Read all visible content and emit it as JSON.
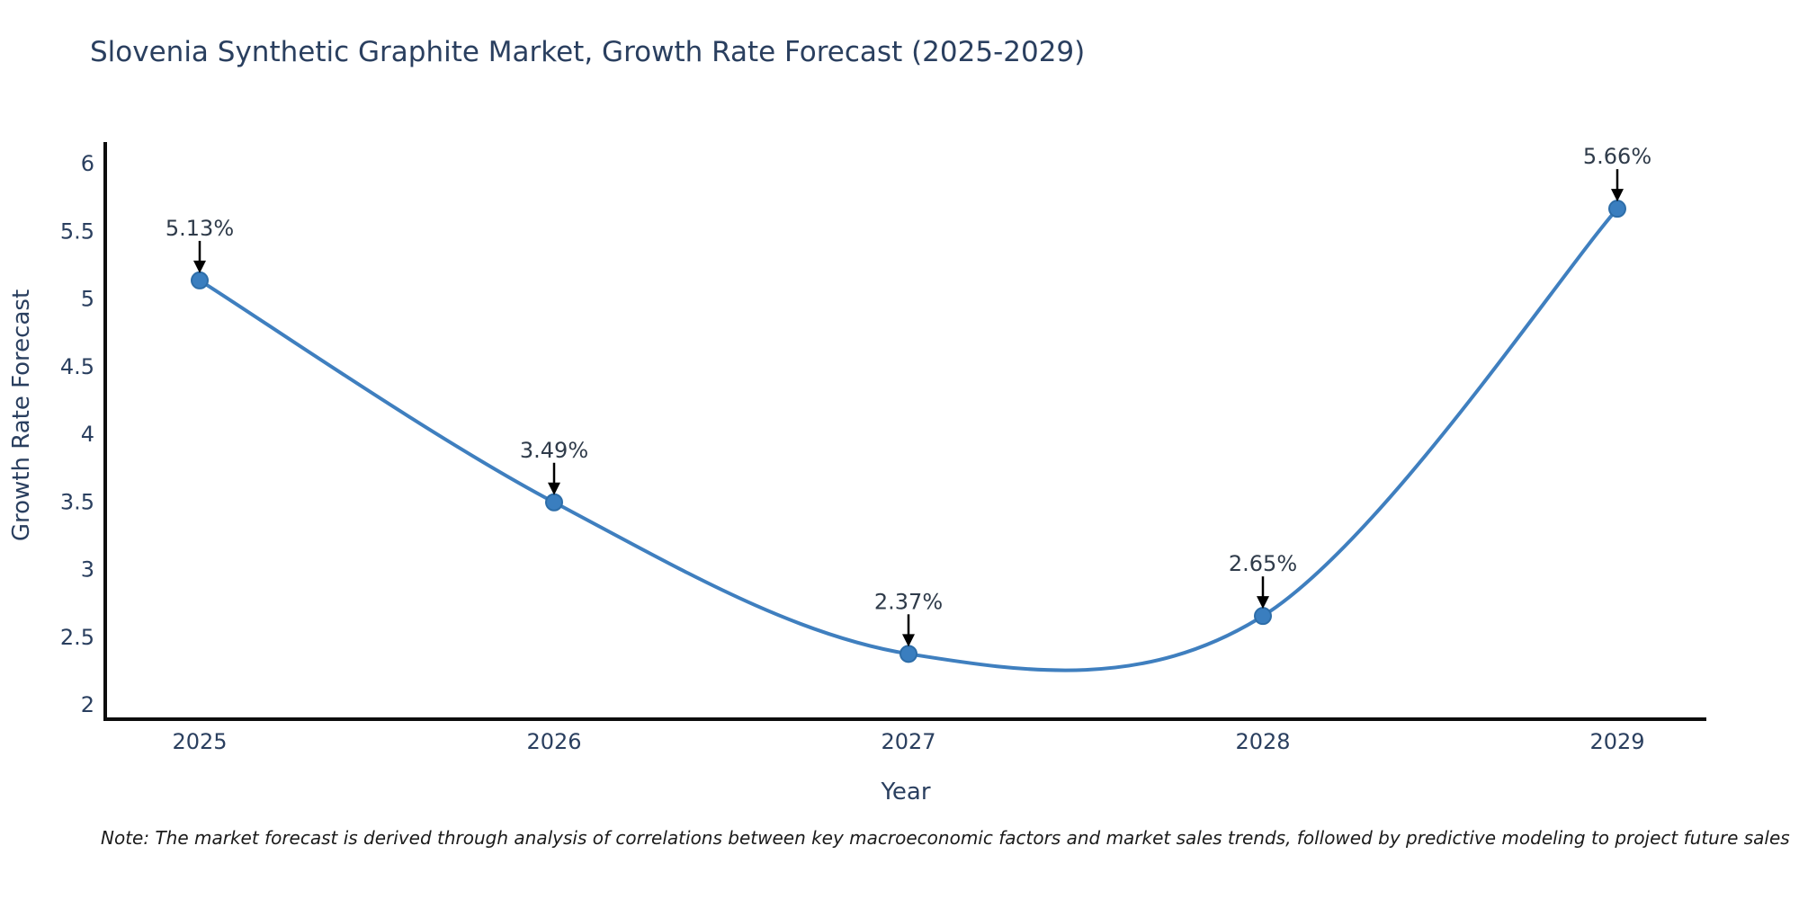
{
  "title": "Slovenia Synthetic Graphite Market, Growth Rate Forecast (2025-2029)",
  "note": "Note: The market forecast is derived through analysis of correlations between key macroeconomic factors and market sales trends, followed by predictive modeling to project future sales",
  "chart_data": {
    "type": "line",
    "line_shape": "spline",
    "title": "Slovenia Synthetic Graphite Market, Growth Rate Forecast (2025-2029)",
    "xlabel": "Year",
    "ylabel": "Growth Rate Forecast",
    "x": [
      2025,
      2026,
      2027,
      2028,
      2029
    ],
    "values": [
      5.13,
      3.49,
      2.37,
      2.65,
      5.66
    ],
    "point_labels": [
      "5.13%",
      "3.49%",
      "2.37%",
      "2.65%",
      "5.66%"
    ],
    "xtick_labels": [
      "2025",
      "2026",
      "2027",
      "2028",
      "2029"
    ],
    "yticks": [
      2,
      2.5,
      3,
      3.5,
      4,
      4.5,
      5,
      5.5,
      6
    ],
    "ytick_labels": [
      "2",
      "2.5",
      "3",
      "3.5",
      "4",
      "4.5",
      "5",
      "5.5",
      "6"
    ],
    "ylim": [
      1.89,
      6.15
    ],
    "grid": false,
    "legend": "none",
    "annotations_have_arrows": true,
    "colors": {
      "line": "#3f7fbf",
      "marker_fill": "#3a7ebf",
      "marker_edge": "#2d6da8",
      "axis_line": "#0d0d0d",
      "tick_text": "#2a3f5f",
      "axis_title_text": "#2a3f5f",
      "annotation_text": "#2f3b4a",
      "arrow": "#000000",
      "note_text": "#1b1b1b",
      "background": "#ffffff"
    }
  }
}
